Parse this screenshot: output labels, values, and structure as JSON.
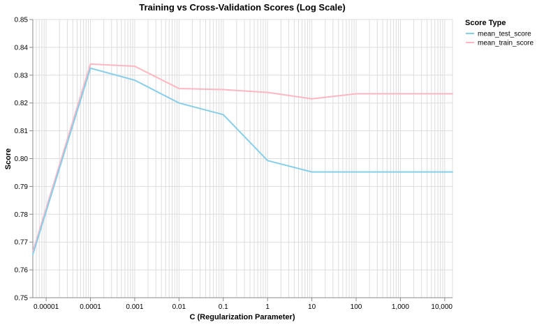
{
  "chart_data": {
    "type": "line",
    "title": "Training vs Cross-Validation Scores (Log Scale)",
    "xlabel": "C (Regularization Parameter)",
    "ylabel": "Score",
    "x_scale": "log",
    "xlim": [
      5e-06,
      15000
    ],
    "ylim": [
      0.75,
      0.85
    ],
    "x": [
      5e-06,
      0.0001,
      0.001,
      0.01,
      0.1,
      1,
      10,
      100,
      1000,
      10000,
      15000
    ],
    "x_tick_values": [
      1e-05,
      0.0001,
      0.001,
      0.01,
      0.1,
      1,
      10,
      100,
      1000,
      10000
    ],
    "x_tick_labels": [
      "0.00001",
      "0.0001",
      "0.001",
      "0.01",
      "0.1",
      "1",
      "10",
      "100",
      "1,000",
      "10,000"
    ],
    "y_tick_values": [
      0.75,
      0.76,
      0.77,
      0.78,
      0.79,
      0.8,
      0.81,
      0.82,
      0.83,
      0.84,
      0.85
    ],
    "y_tick_labels": [
      "0.75",
      "0.76",
      "0.77",
      "0.78",
      "0.79",
      "0.80",
      "0.81",
      "0.82",
      "0.83",
      "0.84",
      "0.85"
    ],
    "grid": true,
    "legend_title": "Score Type",
    "legend_position": "top-right",
    "series": [
      {
        "name": "mean_test_score",
        "color": "#87ceeb",
        "values": [
          0.7655,
          0.8325,
          0.8282,
          0.82,
          0.8158,
          0.7993,
          0.7952,
          0.7952,
          0.7952,
          0.7952,
          0.7952
        ]
      },
      {
        "name": "mean_train_score",
        "color": "#ffb6c1",
        "values": [
          0.7665,
          0.834,
          0.8332,
          0.8252,
          0.8248,
          0.8238,
          0.8215,
          0.8233,
          0.8233,
          0.8233,
          0.8233
        ]
      }
    ]
  }
}
